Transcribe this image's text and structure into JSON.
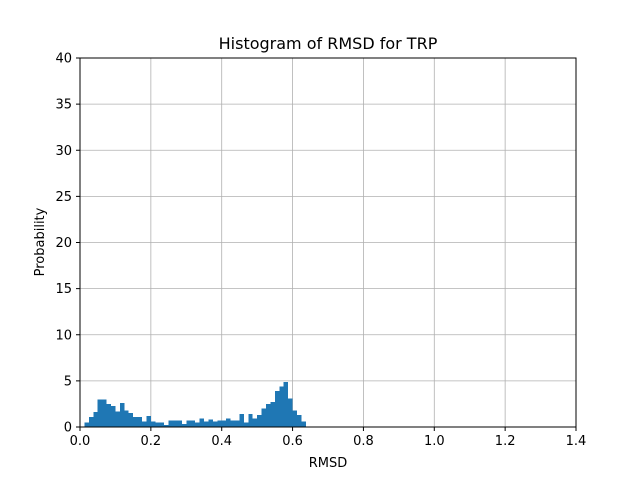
{
  "chart_data": {
    "type": "bar",
    "title": "Histogram of RMSD for TRP",
    "xlabel": "RMSD",
    "ylabel": "Probability",
    "xlim": [
      0.0,
      1.4
    ],
    "ylim": [
      0,
      40
    ],
    "grid": true,
    "bar_color": "#1f77b4",
    "xticks": [
      "0.0",
      "0.2",
      "0.4",
      "0.6",
      "0.8",
      "1.0",
      "1.2",
      "1.4"
    ],
    "yticks": [
      "0",
      "5",
      "10",
      "15",
      "20",
      "25",
      "30",
      "35",
      "40"
    ],
    "bin_width": 0.0125,
    "bin_starts": [
      0.0125,
      0.025,
      0.0375,
      0.05,
      0.0625,
      0.075,
      0.0875,
      0.1,
      0.1125,
      0.125,
      0.1375,
      0.15,
      0.1625,
      0.175,
      0.1875,
      0.2,
      0.2125,
      0.225,
      0.2375,
      0.25,
      0.2625,
      0.275,
      0.2875,
      0.3,
      0.3125,
      0.325,
      0.3375,
      0.35,
      0.3625,
      0.375,
      0.3875,
      0.4,
      0.4125,
      0.425,
      0.4375,
      0.45,
      0.4625,
      0.475,
      0.4875,
      0.5,
      0.5125,
      0.525,
      0.5375,
      0.55,
      0.5625,
      0.575,
      0.5875,
      0.6,
      0.6125,
      0.625,
      0.6375,
      0.65,
      0.6625,
      0.675,
      0.6875
    ],
    "values": [
      0.5,
      1.1,
      1.6,
      3.0,
      3.0,
      2.5,
      2.3,
      1.7,
      2.6,
      1.8,
      1.5,
      1.1,
      1.1,
      0.6,
      1.2,
      0.6,
      0.5,
      0.5,
      0.2,
      0.7,
      0.7,
      0.7,
      0.3,
      0.7,
      0.7,
      0.5,
      0.9,
      0.6,
      0.8,
      0.6,
      0.7,
      0.7,
      0.9,
      0.7,
      0.7,
      1.4,
      0.5,
      1.4,
      0.9,
      1.3,
      2.0,
      2.5,
      2.7,
      3.9,
      4.4,
      4.9,
      3.1,
      1.8,
      1.3,
      0.6,
      0.0,
      0.0,
      0.0,
      0.0,
      0.0
    ]
  }
}
